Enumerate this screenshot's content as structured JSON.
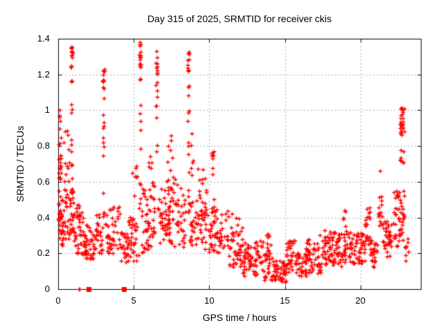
{
  "window_title": "gnuplot scatter plot",
  "chart_data": {
    "type": "scatter",
    "title": "Day 315 of 2025, SRMTID for receiver ckis",
    "xlabel": "GPS time / hours",
    "ylabel": "SRMTID / TECUs",
    "xlim": [
      0,
      24
    ],
    "ylim": [
      0,
      1.4
    ],
    "xticks": {
      "values": [
        0,
        5,
        10,
        15,
        20
      ],
      "labels": [
        "0",
        "5",
        "10",
        "15",
        "20"
      ]
    },
    "yticks": {
      "values": [
        0,
        0.2,
        0.4,
        0.6,
        0.8,
        1.0,
        1.2,
        1.4
      ],
      "labels": [
        "0",
        "0.2",
        "0.4",
        "0.6",
        "0.8",
        "1",
        "1.2",
        "1.4"
      ]
    },
    "grid": true,
    "legend": "none",
    "colors": {
      "marker": "#ff0000",
      "axis": "#000000",
      "grid": "#b0b0b0",
      "text": "#000000",
      "background": "#ffffff"
    },
    "marker": {
      "shape": "plus",
      "size": 7,
      "line_width": 1.3
    },
    "seed": 20251115,
    "series": [
      {
        "name": "SRMTID",
        "peak_points": [
          [
            0.88,
            1.35
          ],
          [
            0.9,
            1.33
          ],
          [
            5.4,
            1.38
          ],
          [
            5.42,
            1.36
          ],
          [
            3.0,
            1.22
          ],
          [
            6.5,
            1.33
          ],
          [
            8.6,
            1.32
          ],
          [
            22.75,
            1.01
          ],
          [
            22.78,
            1.0
          ],
          [
            0.08,
            1.0
          ],
          [
            0.1,
            0.97
          ],
          [
            10.2,
            0.76
          ],
          [
            10.22,
            0.73
          ],
          [
            21.3,
            0.66
          ],
          [
            7.45,
            0.86
          ],
          [
            8.85,
            0.87
          ],
          [
            9.55,
            0.67
          ],
          [
            11.5,
            0.42
          ],
          [
            13.9,
            0.31
          ],
          [
            17.3,
            0.3
          ],
          [
            18.95,
            0.44
          ],
          [
            20.45,
            0.45
          ],
          [
            22.4,
            0.55
          ]
        ],
        "zero_plus_points": [
          [
            1.37,
            0
          ],
          [
            1.42,
            0
          ]
        ],
        "zero_squares": [
          [
            2.0,
            0
          ],
          [
            4.33,
            0
          ]
        ],
        "density_bands": [
          [
            0.02,
            0.2,
            0.5,
            1.02,
            22
          ],
          [
            0.02,
            0.35,
            0.22,
            0.52,
            34
          ],
          [
            0.3,
            0.8,
            0.28,
            0.62,
            26
          ],
          [
            0.35,
            0.75,
            0.62,
            0.97,
            10
          ],
          [
            0.8,
            1.05,
            0.32,
            0.55,
            22
          ],
          [
            0.86,
            0.94,
            0.55,
            1.2,
            14
          ],
          [
            0.84,
            0.96,
            1.24,
            1.36,
            12
          ],
          [
            1.05,
            1.65,
            0.2,
            0.48,
            42
          ],
          [
            1.65,
            2.3,
            0.16,
            0.36,
            38
          ],
          [
            2.3,
            2.95,
            0.2,
            0.44,
            30
          ],
          [
            2.96,
            3.06,
            0.35,
            1.14,
            15
          ],
          [
            2.94,
            3.08,
            1.16,
            1.23,
            8
          ],
          [
            3.1,
            4.1,
            0.2,
            0.47,
            45
          ],
          [
            4.1,
            4.65,
            0.14,
            0.32,
            28
          ],
          [
            4.65,
            5.3,
            0.15,
            0.42,
            32
          ],
          [
            4.85,
            5.3,
            0.42,
            0.72,
            7
          ],
          [
            5.36,
            5.46,
            0.45,
            1.2,
            12
          ],
          [
            5.34,
            5.48,
            1.22,
            1.38,
            12
          ],
          [
            5.5,
            6.4,
            0.2,
            0.58,
            52
          ],
          [
            5.75,
            6.35,
            0.58,
            0.75,
            8
          ],
          [
            6.46,
            6.56,
            0.72,
            1.18,
            9
          ],
          [
            6.44,
            6.58,
            1.2,
            1.33,
            10
          ],
          [
            6.6,
            7.4,
            0.25,
            0.58,
            48
          ],
          [
            7.4,
            8.45,
            0.22,
            0.6,
            48
          ],
          [
            7.1,
            7.8,
            0.6,
            0.87,
            10
          ],
          [
            8.56,
            8.66,
            0.3,
            1.14,
            15
          ],
          [
            8.54,
            8.68,
            1.2,
            1.33,
            10
          ],
          [
            8.7,
            9.9,
            0.22,
            0.52,
            58
          ],
          [
            9.2,
            9.9,
            0.52,
            0.68,
            9
          ],
          [
            8.8,
            9.0,
            0.6,
            0.88,
            5
          ],
          [
            10.13,
            10.3,
            0.45,
            0.77,
            10
          ],
          [
            9.95,
            11.3,
            0.2,
            0.45,
            60
          ],
          [
            11.3,
            12.2,
            0.12,
            0.4,
            48
          ],
          [
            12.2,
            13.6,
            0.07,
            0.27,
            68
          ],
          [
            13.75,
            14.05,
            0.1,
            0.31,
            12
          ],
          [
            13.6,
            14.2,
            0.05,
            0.2,
            24
          ],
          [
            14.2,
            15.1,
            0.04,
            0.16,
            48
          ],
          [
            15.1,
            15.7,
            0.08,
            0.28,
            32
          ],
          [
            15.7,
            16.4,
            0.07,
            0.2,
            38
          ],
          [
            16.4,
            17.6,
            0.09,
            0.28,
            58
          ],
          [
            17.6,
            18.4,
            0.12,
            0.33,
            48
          ],
          [
            18.4,
            19.4,
            0.12,
            0.32,
            52
          ],
          [
            18.85,
            19.05,
            0.3,
            0.45,
            6
          ],
          [
            19.4,
            20.3,
            0.14,
            0.32,
            48
          ],
          [
            20.3,
            20.65,
            0.18,
            0.46,
            20
          ],
          [
            20.65,
            21.12,
            0.12,
            0.28,
            28
          ],
          [
            21.15,
            21.45,
            0.35,
            0.66,
            15
          ],
          [
            21.45,
            22.2,
            0.18,
            0.38,
            42
          ],
          [
            22.2,
            22.55,
            0.24,
            0.55,
            24
          ],
          [
            22.55,
            22.95,
            0.27,
            0.45,
            20
          ],
          [
            22.6,
            22.92,
            0.45,
            0.86,
            14
          ],
          [
            22.62,
            22.9,
            0.86,
            1.02,
            28
          ],
          [
            22.95,
            23.2,
            0.14,
            0.3,
            8
          ]
        ]
      }
    ]
  }
}
